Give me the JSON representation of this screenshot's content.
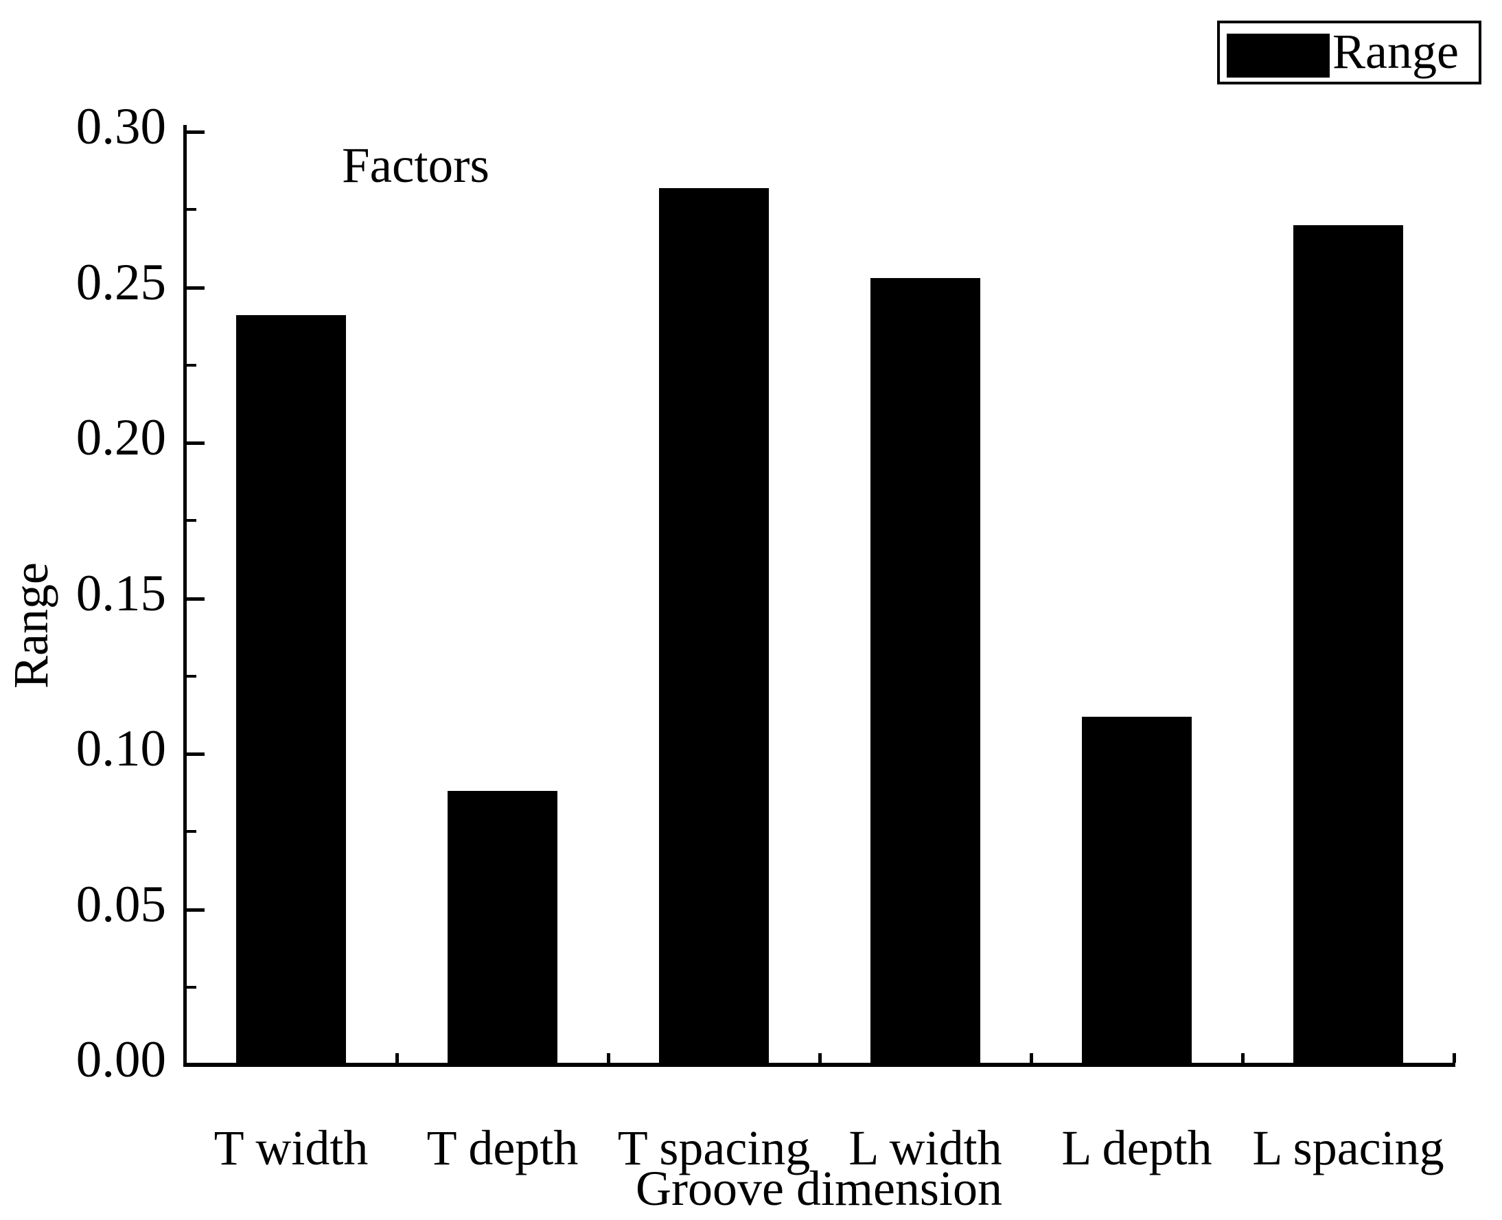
{
  "chart_data": {
    "type": "bar",
    "annotation": "Factors",
    "xlabel": "Groove dimension",
    "ylabel": "Range",
    "legend": {
      "label": "Range",
      "position": "top-right",
      "swatch_color": "#000000"
    },
    "categories": [
      "T width",
      "T depth",
      "T spacing",
      "L width",
      "L depth",
      "L spacing"
    ],
    "values": [
      0.241,
      0.088,
      0.282,
      0.253,
      0.112,
      0.27
    ],
    "ylim": [
      0,
      0.3
    ],
    "ytick_major_step": 0.05,
    "ytick_minor_step": 0.025,
    "ytick_labels": [
      "0.00",
      "0.05",
      "0.10",
      "0.15",
      "0.20",
      "0.25",
      "0.30"
    ],
    "bar_color": "#000000",
    "axis_color": "#000000",
    "background_color": "#ffffff",
    "grid": false,
    "tick_direction": "in"
  }
}
